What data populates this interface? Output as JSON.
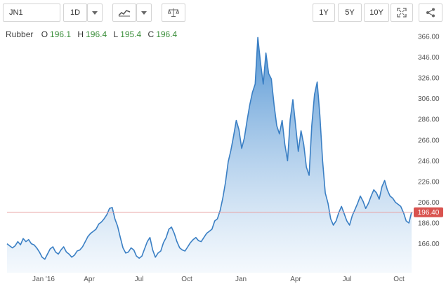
{
  "toolbar": {
    "symbol": "JN1",
    "interval": "1D",
    "range_buttons": [
      "1Y",
      "5Y",
      "10Y"
    ]
  },
  "ohlc": {
    "name": "Rubber",
    "o_label": "O",
    "o": "196.1",
    "h_label": "H",
    "h": "196.4",
    "l_label": "L",
    "l": "195.4",
    "c_label": "C",
    "c": "196.4"
  },
  "colors": {
    "line": "#3a7fc4",
    "fill_top": "#4a8fd1",
    "fill_bottom": "#eef5fc",
    "last_price_tag": "#d9534f",
    "last_price_line": "#e8a0a0",
    "ohlc_values": "#3c8f3c"
  },
  "icons": [
    "chevron-down-icon",
    "line-chart-icon",
    "compare-icon",
    "fullscreen-icon",
    "share-icon"
  ],
  "chart_data": {
    "type": "area",
    "title": "",
    "series": [
      {
        "values": [
          166,
          164,
          162,
          164,
          168,
          165,
          171,
          168,
          170,
          166,
          165,
          162,
          158,
          153,
          151,
          156,
          161,
          163,
          158,
          156,
          160,
          163,
          158,
          156,
          153,
          155,
          159,
          160,
          163,
          168,
          173,
          176,
          178,
          180,
          185,
          187,
          190,
          194,
          200,
          201,
          190,
          183,
          172,
          162,
          157,
          158,
          162,
          160,
          154,
          152,
          154,
          161,
          168,
          172,
          160,
          153,
          157,
          159,
          167,
          172,
          180,
          182,
          176,
          168,
          162,
          160,
          159,
          163,
          167,
          170,
          172,
          169,
          168,
          172,
          176,
          178,
          180,
          188,
          190,
          198,
          210,
          225,
          245,
          256,
          270,
          285,
          276,
          258,
          268,
          285,
          300,
          312,
          320,
          365,
          340,
          320,
          350,
          330,
          325,
          300,
          280,
          272,
          285,
          262,
          246,
          286,
          305,
          280,
          255,
          275,
          262,
          240,
          232,
          280,
          310,
          322,
          290,
          246,
          215,
          205,
          190,
          184,
          188,
          196,
          202,
          195,
          188,
          184,
          193,
          199,
          205,
          212,
          207,
          200,
          205,
          212,
          218,
          215,
          209,
          221,
          227,
          218,
          212,
          210,
          206,
          204,
          202,
          196,
          188,
          186,
          196.4
        ]
      }
    ],
    "y_ticks": [
      "366.00",
      "346.00",
      "326.00",
      "306.00",
      "286.00",
      "266.00",
      "246.00",
      "226.00",
      "206.00",
      "186.00",
      "166.00"
    ],
    "x_ticks": [
      "Jan '16",
      "Apr",
      "Jul",
      "Oct",
      "Jan",
      "Apr",
      "Jul",
      "Oct"
    ],
    "ylim": [
      138,
      370
    ],
    "last_price": "196.40",
    "grid": false
  }
}
